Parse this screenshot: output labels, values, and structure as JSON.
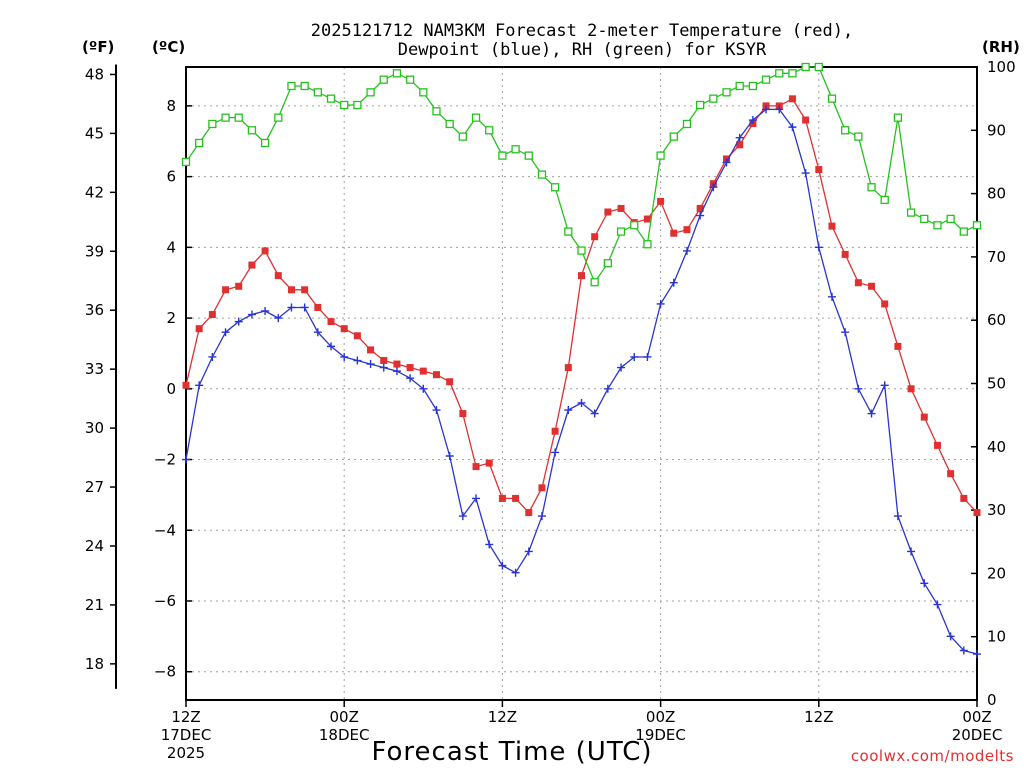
{
  "chart_data": {
    "type": "line",
    "title_line1": "2025121712 NAM3KM Forecast 2-meter Temperature (red),",
    "title_line2": "Dewpoint (blue), RH (green) for KSYR",
    "axis_units": {
      "fahrenheit": "(ºF)",
      "celsius": "(ºC)",
      "rh": "(RH)"
    },
    "xlabel": "Forecast Time (UTC)",
    "credit": "coolwx.com/modelts",
    "x_range_hours": [
      0,
      60
    ],
    "celsius_range": [
      -8.8,
      9.1
    ],
    "rh_range": [
      0,
      100
    ],
    "fahrenheit_ticks": [
      "48",
      "45",
      "42",
      "39",
      "36",
      "33",
      "30",
      "27",
      "24",
      "21",
      "18"
    ],
    "celsius_ticks": [
      "8",
      "6",
      "4",
      "2",
      "0",
      "−2",
      "−4",
      "−6",
      "−8"
    ],
    "rh_ticks": [
      "100",
      "90",
      "80",
      "70",
      "60",
      "50",
      "40",
      "30",
      "20",
      "10",
      "0"
    ],
    "x_ticks": [
      {
        "hour": 0,
        "line1": "12Z",
        "line2": "17DEC",
        "line3": "2025"
      },
      {
        "hour": 12,
        "line1": "00Z",
        "line2": "18DEC",
        "line3": ""
      },
      {
        "hour": 24,
        "line1": "12Z",
        "line2": "",
        "line3": ""
      },
      {
        "hour": 36,
        "line1": "00Z",
        "line2": "19DEC",
        "line3": ""
      },
      {
        "hour": 48,
        "line1": "12Z",
        "line2": "",
        "line3": ""
      },
      {
        "hour": 60,
        "line1": "00Z",
        "line2": "20DEC",
        "line3": ""
      }
    ],
    "series": [
      {
        "name": "2-meter Temperature",
        "units": "C",
        "color": "#e03030",
        "marker": "filled-square",
        "hours": [
          0,
          1,
          2,
          3,
          4,
          5,
          6,
          7,
          8,
          9,
          10,
          11,
          12,
          13,
          14,
          15,
          16,
          17,
          18,
          19,
          20,
          21,
          22,
          23,
          24,
          25,
          26,
          27,
          28,
          29,
          30,
          31,
          32,
          33,
          34,
          35,
          36,
          37,
          38,
          39,
          40,
          41,
          42,
          43,
          44,
          45,
          46,
          47,
          48,
          49,
          50,
          51,
          52,
          53,
          54,
          55,
          56,
          57,
          58,
          59,
          60
        ],
        "values": [
          0.1,
          1.7,
          2.1,
          2.8,
          2.9,
          3.5,
          3.9,
          3.2,
          2.8,
          2.8,
          2.3,
          1.9,
          1.7,
          1.5,
          1.1,
          0.8,
          0.7,
          0.6,
          0.5,
          0.4,
          0.2,
          -0.7,
          -2.2,
          -2.1,
          -3.1,
          -3.1,
          -3.5,
          -2.8,
          -1.2,
          0.6,
          3.2,
          4.3,
          5.0,
          5.1,
          4.7,
          4.8,
          5.3,
          4.4,
          4.5,
          5.1,
          5.8,
          6.5,
          6.9,
          7.5,
          8.0,
          8.0,
          8.2,
          7.6,
          6.2,
          4.6,
          3.8,
          3.0,
          2.9,
          2.4,
          1.2,
          0.0,
          -0.8,
          -1.6,
          -2.4,
          -3.1,
          -3.5
        ]
      },
      {
        "name": "Dewpoint",
        "units": "C",
        "color": "#2a35d0",
        "marker": "plus",
        "hours": [
          0,
          1,
          2,
          3,
          4,
          5,
          6,
          7,
          8,
          9,
          10,
          11,
          12,
          13,
          14,
          15,
          16,
          17,
          18,
          19,
          20,
          21,
          22,
          23,
          24,
          25,
          26,
          27,
          28,
          29,
          30,
          31,
          32,
          33,
          34,
          35,
          36,
          37,
          38,
          39,
          40,
          41,
          42,
          43,
          44,
          45,
          46,
          47,
          48,
          49,
          50,
          51,
          52,
          53,
          54,
          55,
          56,
          57,
          58,
          59,
          60
        ],
        "values": [
          -2.0,
          0.1,
          0.9,
          1.6,
          1.9,
          2.1,
          2.2,
          2.0,
          2.3,
          2.3,
          1.6,
          1.2,
          0.9,
          0.8,
          0.7,
          0.6,
          0.5,
          0.3,
          0.0,
          -0.6,
          -1.9,
          -3.6,
          -3.1,
          -4.4,
          -5.0,
          -5.2,
          -4.6,
          -3.6,
          -1.8,
          -0.6,
          -0.4,
          -0.7,
          0.0,
          0.6,
          0.9,
          0.9,
          2.4,
          3.0,
          3.9,
          4.9,
          5.7,
          6.4,
          7.1,
          7.6,
          7.9,
          7.9,
          7.4,
          6.1,
          4.0,
          2.6,
          1.6,
          0.0,
          -0.7,
          0.1,
          -3.6,
          -4.6,
          -5.5,
          -6.1,
          -7.0,
          -7.4,
          -7.5
        ]
      },
      {
        "name": "RH",
        "units": "%",
        "color": "#25c21e",
        "marker": "open-square",
        "hours": [
          0,
          1,
          2,
          3,
          4,
          5,
          6,
          7,
          8,
          9,
          10,
          11,
          12,
          13,
          14,
          15,
          16,
          17,
          18,
          19,
          20,
          21,
          22,
          23,
          24,
          25,
          26,
          27,
          28,
          29,
          30,
          31,
          32,
          33,
          34,
          35,
          36,
          37,
          38,
          39,
          40,
          41,
          42,
          43,
          44,
          45,
          46,
          47,
          48,
          49,
          50,
          51,
          52,
          53,
          54,
          55,
          56,
          57,
          58,
          59,
          60
        ],
        "values": [
          85,
          88,
          91,
          92,
          92,
          90,
          88,
          92,
          97,
          97,
          96,
          95,
          94,
          94,
          96,
          98,
          99,
          98,
          96,
          93,
          91,
          89,
          92,
          90,
          86,
          87,
          86,
          83,
          81,
          74,
          71,
          66,
          69,
          74,
          75,
          72,
          86,
          89,
          91,
          94,
          95,
          96,
          97,
          97,
          98,
          99,
          99,
          100,
          100,
          95,
          90,
          89,
          81,
          79,
          92,
          77,
          76,
          75,
          76,
          74,
          75
        ]
      }
    ]
  }
}
